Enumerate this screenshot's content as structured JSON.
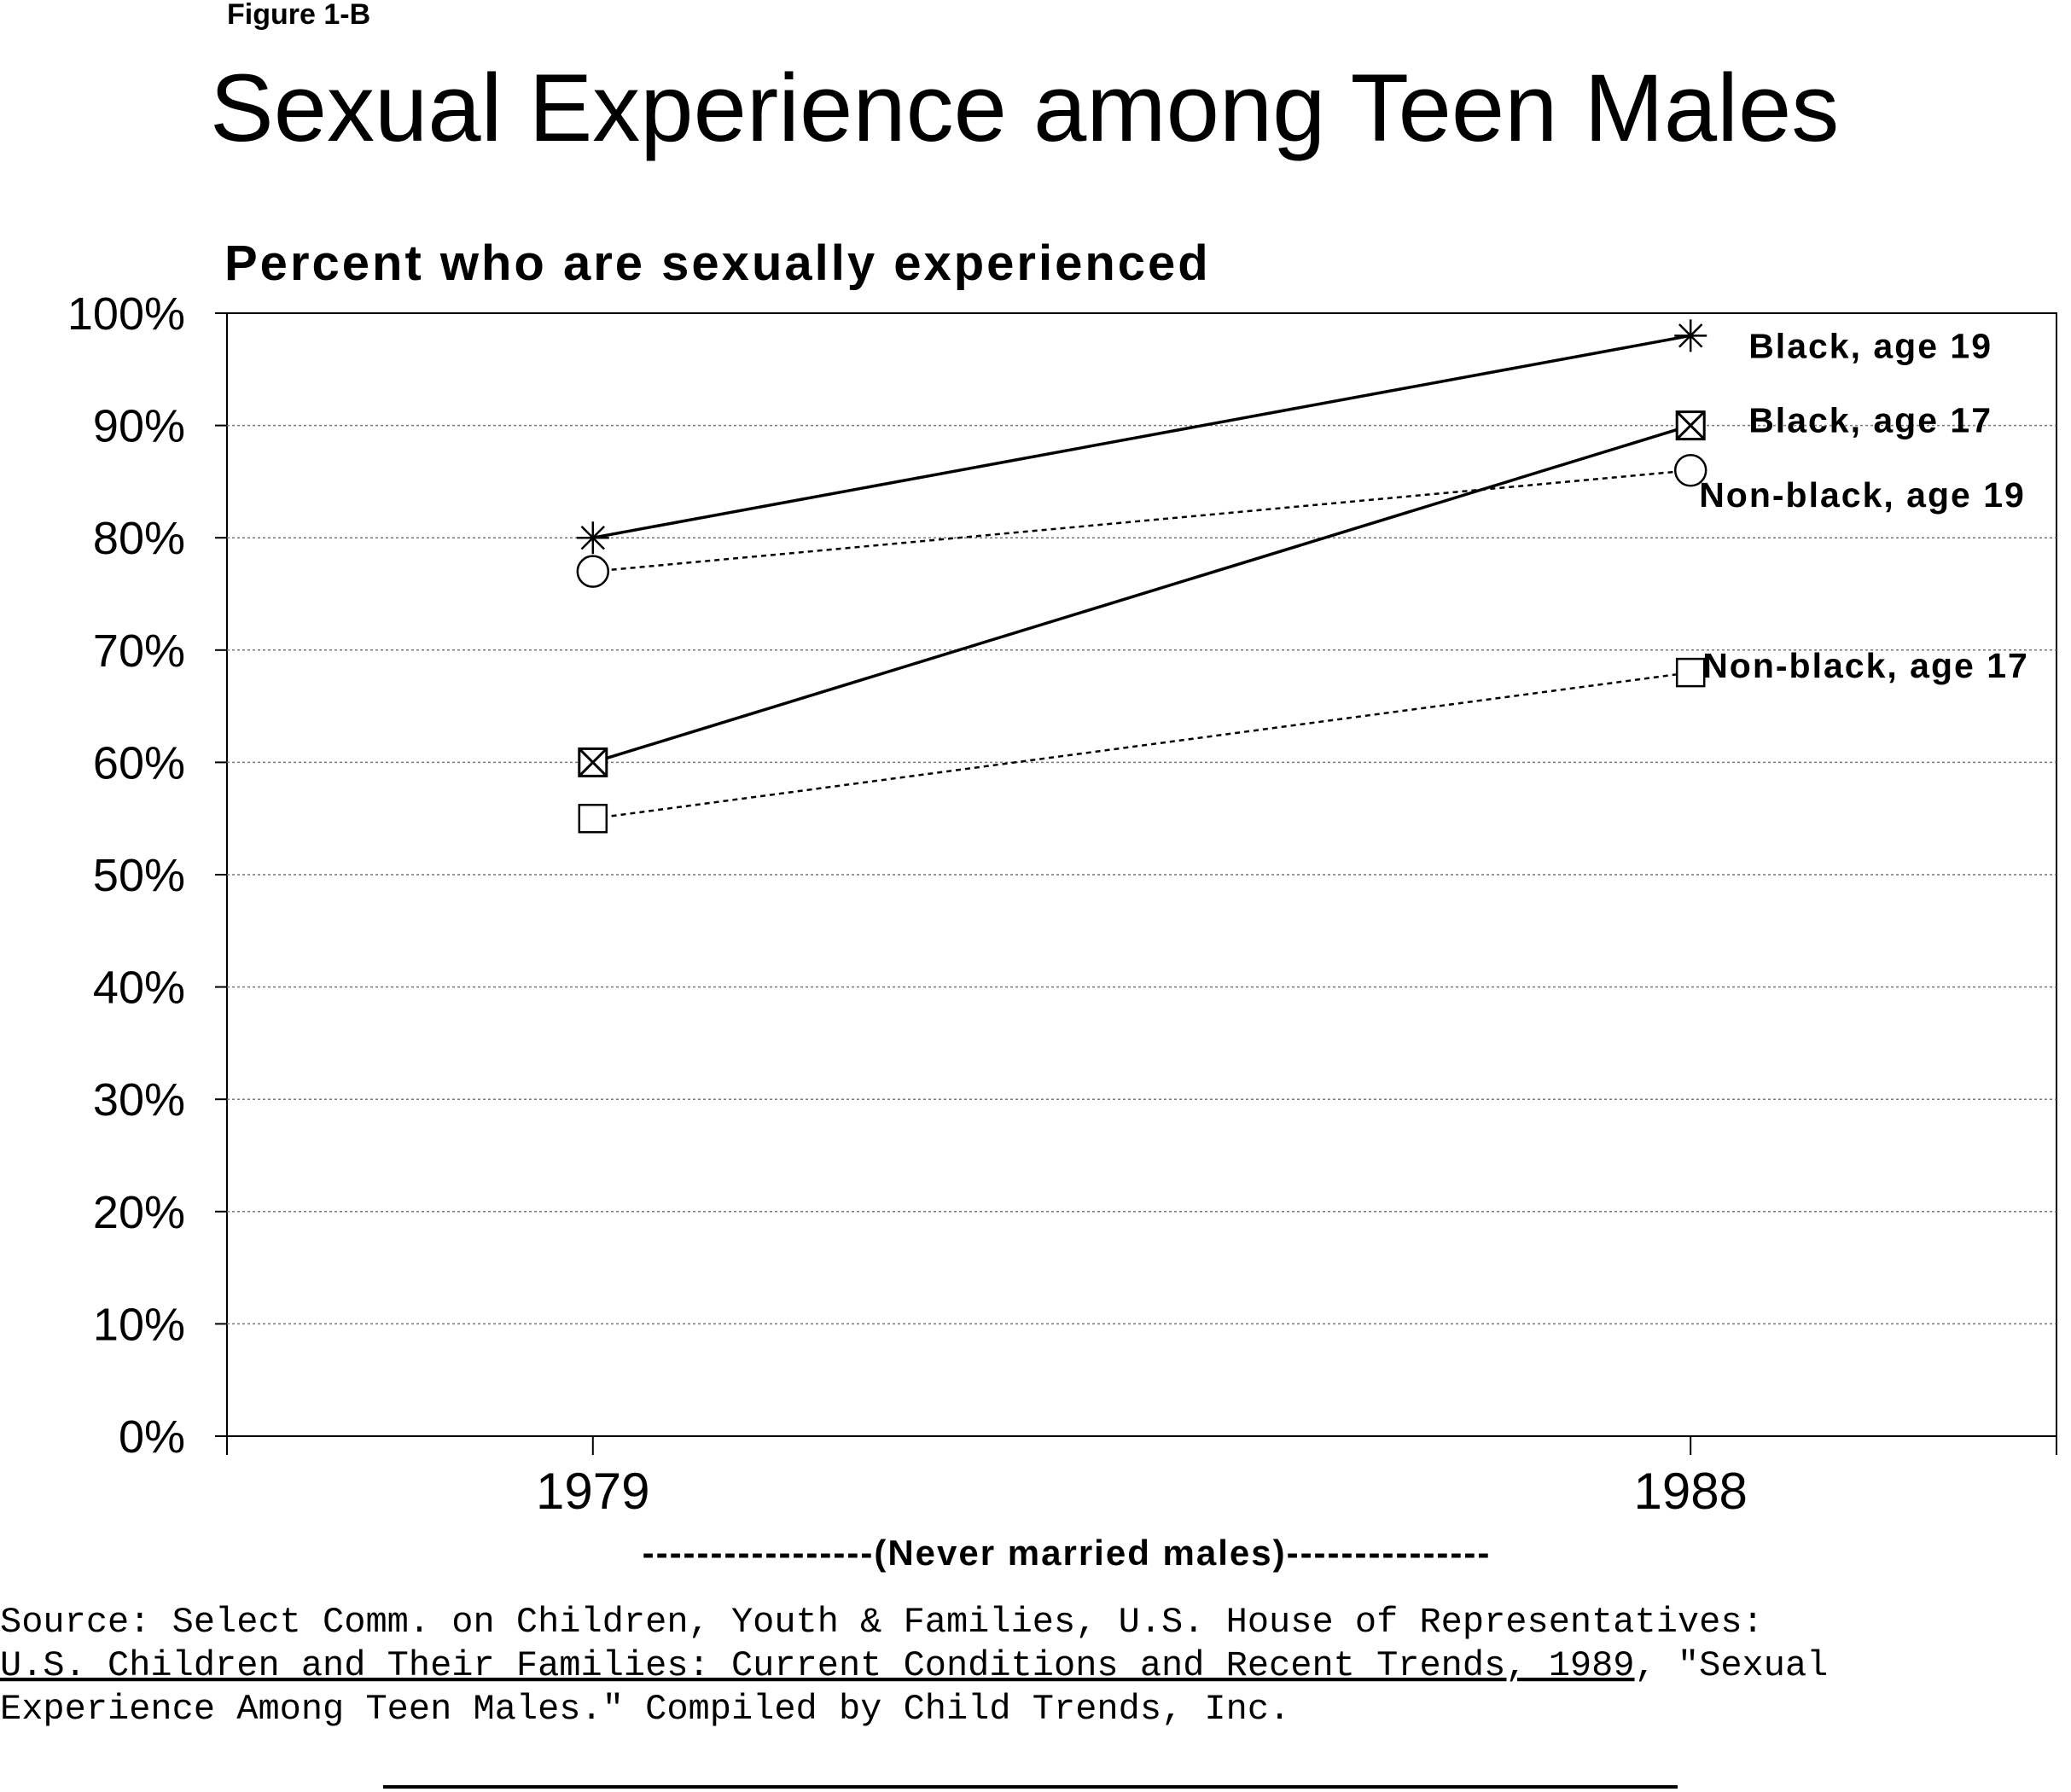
{
  "chart_data": {
    "type": "line",
    "figure_label": "Figure 1-B",
    "title": "Sexual Experience among Teen Males",
    "subtitle": "Percent who are sexually experienced",
    "x_label": "-----------------(Never married males)---------------",
    "x": [
      1979,
      1988
    ],
    "xlim": [
      1976,
      1991
    ],
    "xticks": [
      1979,
      1988
    ],
    "ylim": [
      0,
      100
    ],
    "yticks": [
      {
        "value": 0,
        "label": "0%"
      },
      {
        "value": 10,
        "label": "10%"
      },
      {
        "value": 20,
        "label": "20%"
      },
      {
        "value": 30,
        "label": "30%"
      },
      {
        "value": 40,
        "label": "40%"
      },
      {
        "value": 50,
        "label": "50%"
      },
      {
        "value": 60,
        "label": "60%"
      },
      {
        "value": 70,
        "label": "70%"
      },
      {
        "value": 80,
        "label": "80%"
      },
      {
        "value": 90,
        "label": "90%"
      },
      {
        "value": 100,
        "label": "100%"
      }
    ],
    "grid": true,
    "series": [
      {
        "name": "Black, age 19",
        "color": "#000000",
        "line": "solid",
        "marker": "asterisk",
        "values": [
          80,
          98
        ]
      },
      {
        "name": "Black, age 17",
        "color": "#000000",
        "line": "solid",
        "marker": "boxed-x",
        "values": [
          60,
          90
        ]
      },
      {
        "name": "Non-black, age 19",
        "color": "#000000",
        "line": "dashed",
        "marker": "circle",
        "values": [
          77,
          86
        ]
      },
      {
        "name": "Non-black, age 17",
        "color": "#000000",
        "line": "dashed",
        "marker": "square",
        "values": [
          55,
          68
        ]
      }
    ],
    "source": {
      "line1": "Source: Select Comm. on Children, Youth & Families, U.S. House of Representatives:",
      "line2_title": "U.S. Children and Their Families: Current Conditions and Recent Trends, 1989",
      "line2_rest": ", \"Sexual",
      "line3": "Experience Among Teen Males.\"  Compiled by Child Trends, Inc."
    }
  }
}
